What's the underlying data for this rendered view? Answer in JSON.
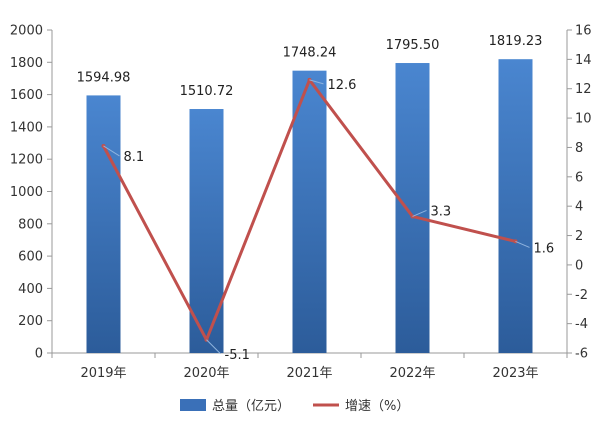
{
  "chart_data": {
    "type": "bar",
    "categories": [
      "2019年",
      "2020年",
      "2021年",
      "2022年",
      "2023年"
    ],
    "series": [
      {
        "name": "总量（亿元）",
        "type": "bar",
        "axis": "left",
        "values": [
          1594.98,
          1510.72,
          1748.24,
          1795.5,
          1819.23
        ],
        "labels": [
          "1594.98",
          "1510.72",
          "1748.24",
          "1795.50",
          "1819.23"
        ],
        "color": "#3a70b8"
      },
      {
        "name": "增速（%）",
        "type": "line",
        "axis": "right",
        "values": [
          8.1,
          -5.1,
          12.6,
          3.3,
          1.6
        ],
        "labels": [
          "8.1",
          "-5.1",
          "12.6",
          "3.3",
          "1.6"
        ],
        "color": "#c0504d"
      }
    ],
    "y_left": {
      "min": 0,
      "max": 2000,
      "step": 200,
      "ticks": [
        "0",
        "200",
        "400",
        "600",
        "800",
        "1000",
        "1200",
        "1400",
        "1600",
        "1800",
        "2000"
      ]
    },
    "y_right": {
      "min": -6,
      "max": 16,
      "step": 2,
      "ticks": [
        "-6",
        "-4",
        "-2",
        "0",
        "2",
        "4",
        "6",
        "8",
        "10",
        "12",
        "14",
        "16"
      ]
    },
    "legend_position": "bottom",
    "grid": false
  }
}
